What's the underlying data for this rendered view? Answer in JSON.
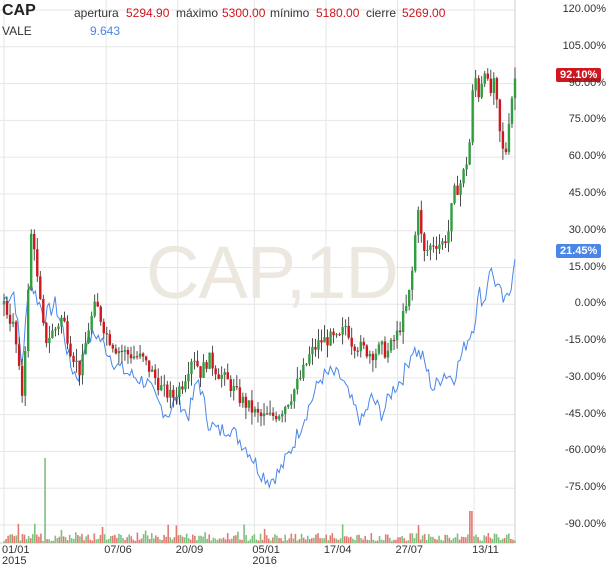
{
  "header": {
    "symbol": "CAP",
    "apertura_label": "apertura",
    "apertura_value": "5294.90",
    "maximo_label": "máximo",
    "maximo_value": "5300.00",
    "minimo_label": "mínimo",
    "minimo_value": "5180.00",
    "cierre_label": "cierre",
    "cierre_value": "5269.00",
    "compare_symbol": "VALE",
    "compare_value": "9.643"
  },
  "watermark": "CAP,1D",
  "colors": {
    "up": "#2e9e3e",
    "down": "#d0161f",
    "compare": "#4a86e8",
    "grid": "#e6e6e6"
  },
  "chart_data": {
    "type": "line",
    "y_ticks": [
      "120.00%",
      "105.00%",
      "90.00%",
      "75.00%",
      "60.00%",
      "45.00%",
      "30.00%",
      "15.00%",
      "0.00%",
      "-15.00%",
      "-30.00%",
      "-45.00%",
      "-60.00%",
      "-75.00%",
      "-90.00%"
    ],
    "ylim": [
      -95,
      125
    ],
    "x_ticks": [
      {
        "label": "01/01",
        "sub": "2015",
        "x": 0
      },
      {
        "label": "07/06",
        "sub": "",
        "x": 0.2
      },
      {
        "label": "20/09",
        "sub": "",
        "x": 0.34
      },
      {
        "label": "05/01",
        "sub": "2016",
        "x": 0.49
      },
      {
        "label": "17/04",
        "sub": "",
        "x": 0.63
      },
      {
        "label": "27/07",
        "sub": "",
        "x": 0.77
      },
      {
        "label": "13/11",
        "sub": "",
        "x": 0.92
      }
    ],
    "series": [
      {
        "name": "CAP",
        "current_label": "92.10%",
        "values": [
          [
            0.0,
            0
          ],
          [
            0.02,
            -10
          ],
          [
            0.035,
            -38
          ],
          [
            0.045,
            -5
          ],
          [
            0.055,
            35
          ],
          [
            0.065,
            10
          ],
          [
            0.08,
            -15
          ],
          [
            0.1,
            -10
          ],
          [
            0.115,
            -5
          ],
          [
            0.13,
            -18
          ],
          [
            0.15,
            -28
          ],
          [
            0.165,
            -10
          ],
          [
            0.18,
            0
          ],
          [
            0.2,
            -12
          ],
          [
            0.22,
            -18
          ],
          [
            0.24,
            -20
          ],
          [
            0.27,
            -22
          ],
          [
            0.29,
            -28
          ],
          [
            0.31,
            -35
          ],
          [
            0.33,
            -38
          ],
          [
            0.35,
            -32
          ],
          [
            0.37,
            -20
          ],
          [
            0.385,
            -28
          ],
          [
            0.4,
            -22
          ],
          [
            0.42,
            -28
          ],
          [
            0.44,
            -32
          ],
          [
            0.46,
            -38
          ],
          [
            0.48,
            -42
          ],
          [
            0.5,
            -46
          ],
          [
            0.52,
            -46
          ],
          [
            0.54,
            -44
          ],
          [
            0.56,
            -38
          ],
          [
            0.58,
            -30
          ],
          [
            0.6,
            -20
          ],
          [
            0.62,
            -15
          ],
          [
            0.64,
            -14
          ],
          [
            0.655,
            -15
          ],
          [
            0.67,
            -8
          ],
          [
            0.68,
            -15
          ],
          [
            0.7,
            -18
          ],
          [
            0.72,
            -20
          ],
          [
            0.74,
            -18
          ],
          [
            0.75,
            -20
          ],
          [
            0.77,
            -12
          ],
          [
            0.79,
            0
          ],
          [
            0.8,
            15
          ],
          [
            0.81,
            42
          ],
          [
            0.82,
            20
          ],
          [
            0.84,
            25
          ],
          [
            0.86,
            25
          ],
          [
            0.87,
            30
          ],
          [
            0.88,
            45
          ],
          [
            0.895,
            50
          ],
          [
            0.91,
            62
          ],
          [
            0.92,
            95
          ],
          [
            0.93,
            85
          ],
          [
            0.94,
            98
          ],
          [
            0.95,
            85
          ],
          [
            0.96,
            90
          ],
          [
            0.97,
            70
          ],
          [
            0.98,
            58
          ],
          [
            0.99,
            80
          ],
          [
            1.0,
            92
          ]
        ]
      },
      {
        "name": "VALE",
        "current_label": "21.45%",
        "values": [
          [
            0.0,
            2
          ],
          [
            0.02,
            5
          ],
          [
            0.035,
            -25
          ],
          [
            0.05,
            10
          ],
          [
            0.06,
            5
          ],
          [
            0.08,
            -5
          ],
          [
            0.1,
            0
          ],
          [
            0.115,
            -10
          ],
          [
            0.13,
            -25
          ],
          [
            0.145,
            -30
          ],
          [
            0.16,
            -15
          ],
          [
            0.18,
            -12
          ],
          [
            0.2,
            -18
          ],
          [
            0.22,
            -25
          ],
          [
            0.24,
            -28
          ],
          [
            0.26,
            -30
          ],
          [
            0.28,
            -32
          ],
          [
            0.3,
            -40
          ],
          [
            0.32,
            -45
          ],
          [
            0.34,
            -38
          ],
          [
            0.36,
            -46
          ],
          [
            0.38,
            -30
          ],
          [
            0.4,
            -48
          ],
          [
            0.42,
            -52
          ],
          [
            0.44,
            -50
          ],
          [
            0.46,
            -55
          ],
          [
            0.48,
            -60
          ],
          [
            0.5,
            -68
          ],
          [
            0.52,
            -72
          ],
          [
            0.54,
            -68
          ],
          [
            0.56,
            -60
          ],
          [
            0.58,
            -50
          ],
          [
            0.6,
            -40
          ],
          [
            0.62,
            -30
          ],
          [
            0.64,
            -28
          ],
          [
            0.66,
            -30
          ],
          [
            0.68,
            -40
          ],
          [
            0.7,
            -48
          ],
          [
            0.72,
            -38
          ],
          [
            0.74,
            -45
          ],
          [
            0.76,
            -35
          ],
          [
            0.78,
            -30
          ],
          [
            0.8,
            -18
          ],
          [
            0.82,
            -22
          ],
          [
            0.84,
            -35
          ],
          [
            0.86,
            -28
          ],
          [
            0.88,
            -30
          ],
          [
            0.9,
            -18
          ],
          [
            0.92,
            -8
          ],
          [
            0.93,
            5
          ],
          [
            0.94,
            0
          ],
          [
            0.95,
            15
          ],
          [
            0.96,
            10
          ],
          [
            0.97,
            5
          ],
          [
            0.98,
            0
          ],
          [
            0.99,
            5
          ],
          [
            1.0,
            21
          ]
        ]
      }
    ]
  }
}
